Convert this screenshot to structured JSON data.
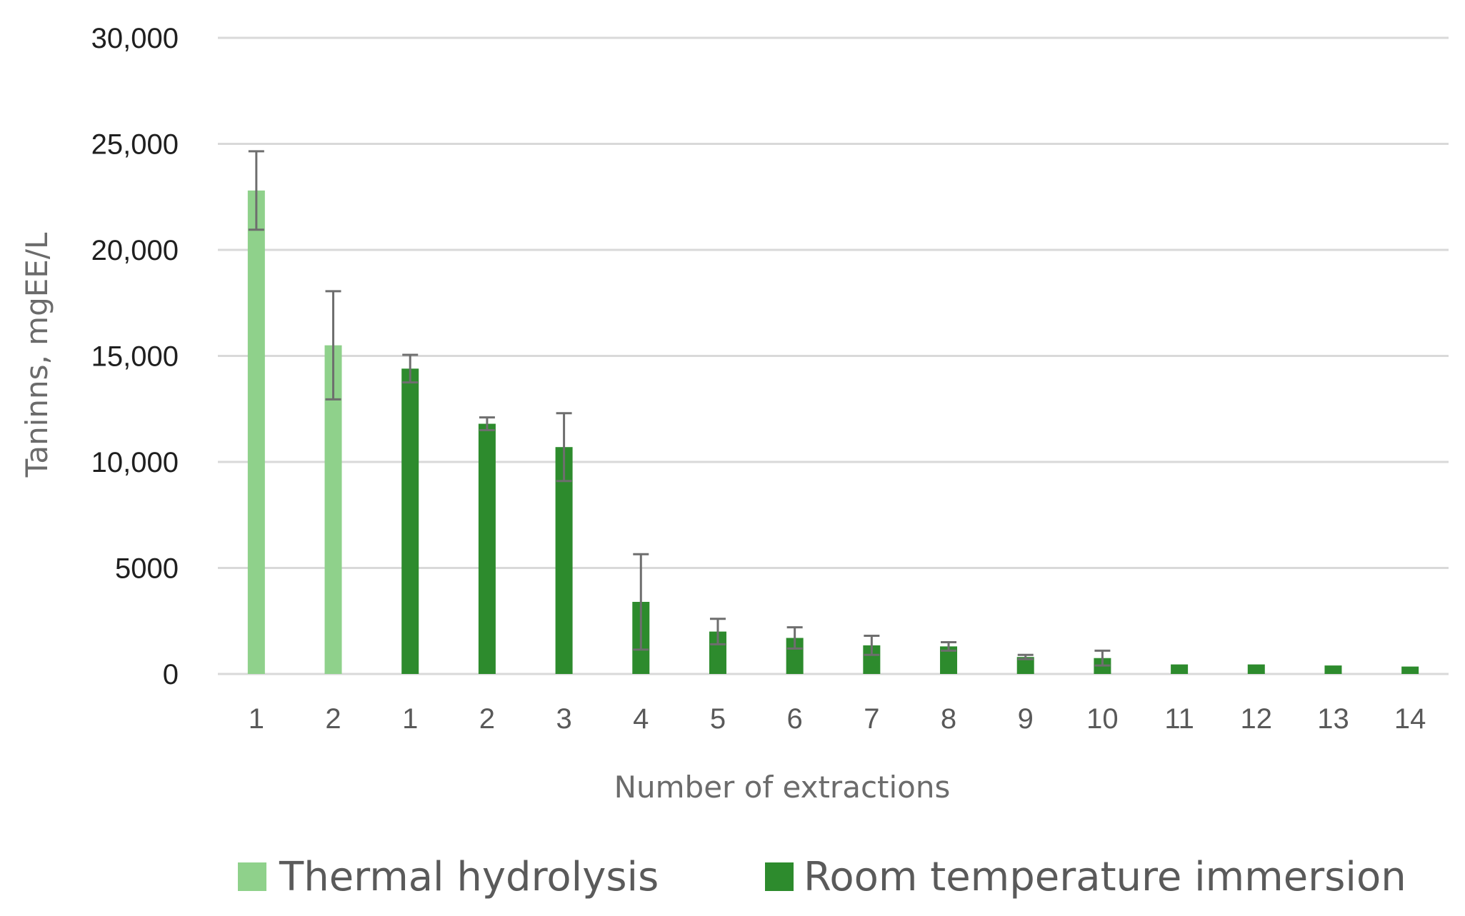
{
  "chart_data": {
    "type": "bar",
    "xlabel": "Number of extractions",
    "ylabel": "Taninns, mgEE/L",
    "ylim": [
      0,
      30000
    ],
    "yticks": [
      0,
      5000,
      10000,
      15000,
      20000,
      25000,
      30000
    ],
    "ytick_labels": [
      "0",
      "5000",
      "10,000",
      "15,000",
      "20,000",
      "25,000",
      "30,000"
    ],
    "grid": true,
    "legend_position": "bottom",
    "categories": [
      "1",
      "2",
      "1",
      "2",
      "3",
      "4",
      "5",
      "6",
      "7",
      "8",
      "9",
      "10",
      "11",
      "12",
      "13",
      "14"
    ],
    "series": [
      {
        "name": "Thermal hydrolysis",
        "color": "#8fd18b",
        "points": [
          {
            "category_index": 0,
            "value": 22800,
            "error": 1850
          },
          {
            "category_index": 1,
            "value": 15500,
            "error": 2550
          }
        ]
      },
      {
        "name": "Room temperature immersion",
        "color": "#2d8b2d",
        "points": [
          {
            "category_index": 2,
            "value": 14400,
            "error": 650
          },
          {
            "category_index": 3,
            "value": 11800,
            "error": 300
          },
          {
            "category_index": 4,
            "value": 10700,
            "error": 1600
          },
          {
            "category_index": 5,
            "value": 3400,
            "error": 2250
          },
          {
            "category_index": 6,
            "value": 2000,
            "error": 600
          },
          {
            "category_index": 7,
            "value": 1700,
            "error": 500
          },
          {
            "category_index": 8,
            "value": 1350,
            "error": 450
          },
          {
            "category_index": 9,
            "value": 1300,
            "error": 200
          },
          {
            "category_index": 10,
            "value": 800,
            "error": 100
          },
          {
            "category_index": 11,
            "value": 750,
            "error": 350
          },
          {
            "category_index": 12,
            "value": 450,
            "error": 0
          },
          {
            "category_index": 13,
            "value": 450,
            "error": 0
          },
          {
            "category_index": 14,
            "value": 400,
            "error": 0
          },
          {
            "category_index": 15,
            "value": 350,
            "error": 0
          }
        ]
      }
    ]
  }
}
